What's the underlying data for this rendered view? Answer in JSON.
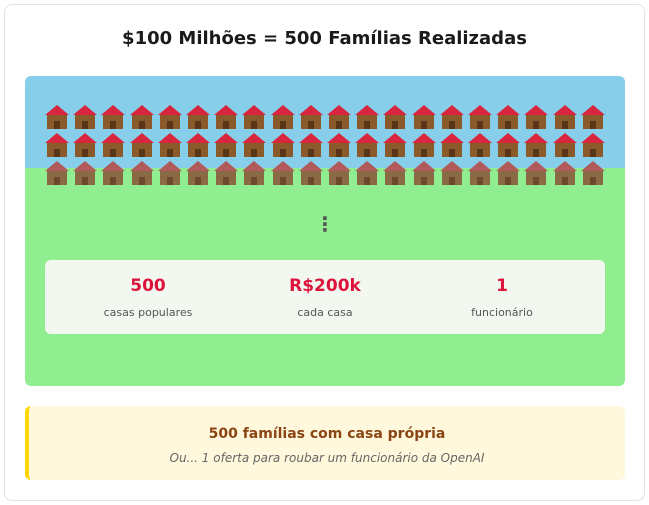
{
  "title": "$100 Milhões = 500 Famílias Realizadas",
  "scene": {
    "house_rows": 3,
    "houses_per_row": 20,
    "ellipsis": "⋮"
  },
  "stats": [
    {
      "value": "500",
      "label": "casas populares"
    },
    {
      "value": "R$200k",
      "label": "cada casa"
    },
    {
      "value": "1",
      "label": "funcionário"
    }
  ],
  "footer": {
    "headline": "500 famílias com casa própria",
    "subtext": "Ou... 1 oferta para roubar um funcionário da OpenAI"
  },
  "colors": {
    "sky": "#87ceeb",
    "grass": "#90ee90",
    "roof": "#d7263d",
    "walls": "#8b5a2b",
    "stat_value": "#dc143c",
    "footer_bg": "#fff8dc",
    "footer_accent": "#ffd700",
    "footer_headline": "#8b4513"
  }
}
